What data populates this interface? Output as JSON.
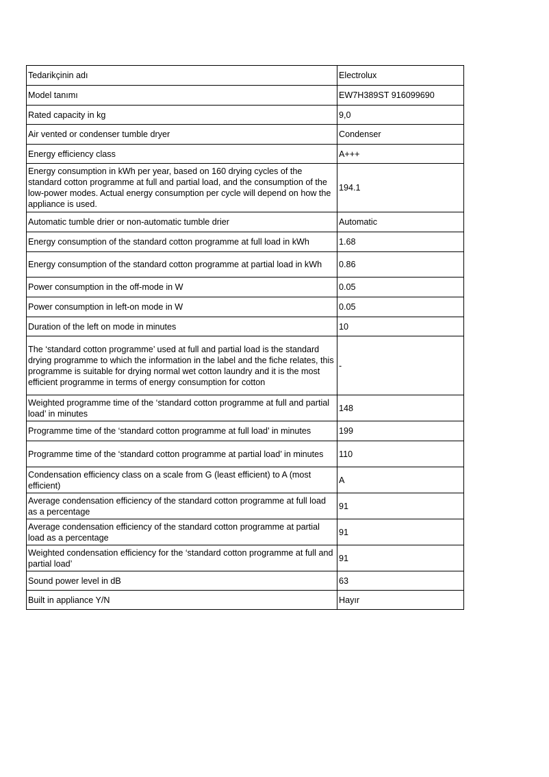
{
  "rows": [
    {
      "label": "Tedarikçinin adı",
      "value": "Electrolux"
    },
    {
      "label": "Model tanımı",
      "value": "EW7H389ST 916099690"
    },
    {
      "label": "Rated capacity in kg",
      "value": "9,0"
    },
    {
      "label": "Air vented or condenser tumble dryer",
      "value": "Condenser"
    },
    {
      "label": "Energy efficiency class",
      "value": "A+++"
    },
    {
      "label": "Energy consumption in kWh per year, based on 160 drying cycles of the standard cotton programme at full and partial load, and the consumption of the low-power modes. Actual energy consumption per cycle will depend on how the appliance is used.",
      "value": "194.1"
    },
    {
      "label": "Automatic tumble drier or non-automatic tumble drier",
      "value": "Automatic"
    },
    {
      "label": "Energy consumption of the standard cotton programme at full load in kWh",
      "value": "1.68"
    },
    {
      "label": "Energy consumption of the standard cotton programme at partial load in kWh",
      "value": "0.86"
    },
    {
      "label": "Power consumption in the off-mode in W",
      "value": "0.05"
    },
    {
      "label": "Power consumption in left-on mode in W",
      "value": "0.05"
    },
    {
      "label": "Duration of the left on mode in minutes",
      "value": "10"
    },
    {
      "label": "The ‘standard cotton programme’ used at full and partial load is the standard drying programme to which the information in the label and the fiche relates, this programme is suitable for drying normal wet cotton laundry and it is the most efficient programme in terms of energy consumption for cotton",
      "value": "-"
    },
    {
      "label": "Weighted programme time of the ‘standard cotton programme at full and partial load’ in minutes",
      "value": "148"
    },
    {
      "label": "Programme time of the ‘standard cotton programme at full load’ in minutes",
      "value": "199"
    },
    {
      "label": "Programme time of the ‘standard cotton programme at partial load’ in minutes",
      "value": "110"
    },
    {
      "label": "Condensation efficiency class on a scale from G (least efficient) to A (most efficient)",
      "value": "A"
    },
    {
      "label": "Average condensation efficiency of the standard cotton programme at full load as a percentage",
      "value": "91"
    },
    {
      "label": "Average condensation efficiency of the standard cotton programme at partial load as a percentage",
      "value": "91"
    },
    {
      "label": "Weighted condensation efficiency for the ‘standard cotton programme at full and partial load’",
      "value": "91"
    },
    {
      "label": "Sound power level in dB",
      "value": "63"
    },
    {
      "label": "Built in appliance Y/N",
      "value": "Hayır"
    }
  ]
}
